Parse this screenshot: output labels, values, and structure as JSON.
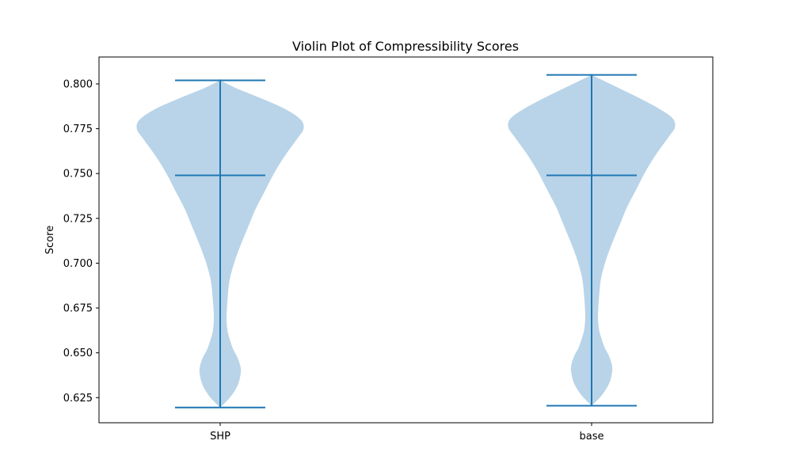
{
  "chart_data": {
    "type": "violin",
    "title": "Violin Plot of Compressibility Scores",
    "xlabel": "",
    "ylabel": "Score",
    "ylim": [
      0.611,
      0.815
    ],
    "yticks": [
      "0.625",
      "0.650",
      "0.675",
      "0.700",
      "0.725",
      "0.750",
      "0.775",
      "0.800"
    ],
    "ytick_values": [
      0.625,
      0.65,
      0.675,
      0.7,
      0.725,
      0.75,
      0.775,
      0.8
    ],
    "categories": [
      "SHP",
      "base"
    ],
    "grid": false,
    "fill_color": "#b9d4e8",
    "line_color": "#1f77b4",
    "series": [
      {
        "category": "SHP",
        "min": 0.6195,
        "max": 0.802,
        "median": 0.749,
        "density": [
          [
            0.6195,
            0.0
          ],
          [
            0.622,
            0.05
          ],
          [
            0.626,
            0.12
          ],
          [
            0.632,
            0.19
          ],
          [
            0.638,
            0.22
          ],
          [
            0.642,
            0.22
          ],
          [
            0.647,
            0.19
          ],
          [
            0.652,
            0.14
          ],
          [
            0.658,
            0.1
          ],
          [
            0.662,
            0.08
          ],
          [
            0.667,
            0.07
          ],
          [
            0.672,
            0.07
          ],
          [
            0.68,
            0.08
          ],
          [
            0.69,
            0.1
          ],
          [
            0.7,
            0.15
          ],
          [
            0.71,
            0.22
          ],
          [
            0.72,
            0.3
          ],
          [
            0.73,
            0.38
          ],
          [
            0.74,
            0.48
          ],
          [
            0.75,
            0.58
          ],
          [
            0.76,
            0.7
          ],
          [
            0.77,
            0.84
          ],
          [
            0.775,
            0.9
          ],
          [
            0.78,
            0.87
          ],
          [
            0.786,
            0.7
          ],
          [
            0.792,
            0.44
          ],
          [
            0.797,
            0.2
          ],
          [
            0.802,
            0.0
          ]
        ]
      },
      {
        "category": "base",
        "min": 0.6205,
        "max": 0.805,
        "median": 0.749,
        "density": [
          [
            0.6205,
            0.0
          ],
          [
            0.623,
            0.05
          ],
          [
            0.627,
            0.12
          ],
          [
            0.633,
            0.19
          ],
          [
            0.639,
            0.22
          ],
          [
            0.643,
            0.22
          ],
          [
            0.648,
            0.19
          ],
          [
            0.653,
            0.14
          ],
          [
            0.659,
            0.1
          ],
          [
            0.663,
            0.08
          ],
          [
            0.668,
            0.07
          ],
          [
            0.673,
            0.07
          ],
          [
            0.681,
            0.08
          ],
          [
            0.691,
            0.1
          ],
          [
            0.701,
            0.15
          ],
          [
            0.711,
            0.22
          ],
          [
            0.721,
            0.3
          ],
          [
            0.731,
            0.38
          ],
          [
            0.741,
            0.48
          ],
          [
            0.751,
            0.58
          ],
          [
            0.761,
            0.7
          ],
          [
            0.771,
            0.84
          ],
          [
            0.776,
            0.9
          ],
          [
            0.781,
            0.87
          ],
          [
            0.787,
            0.7
          ],
          [
            0.794,
            0.44
          ],
          [
            0.8,
            0.2
          ],
          [
            0.805,
            0.0
          ]
        ]
      }
    ]
  }
}
